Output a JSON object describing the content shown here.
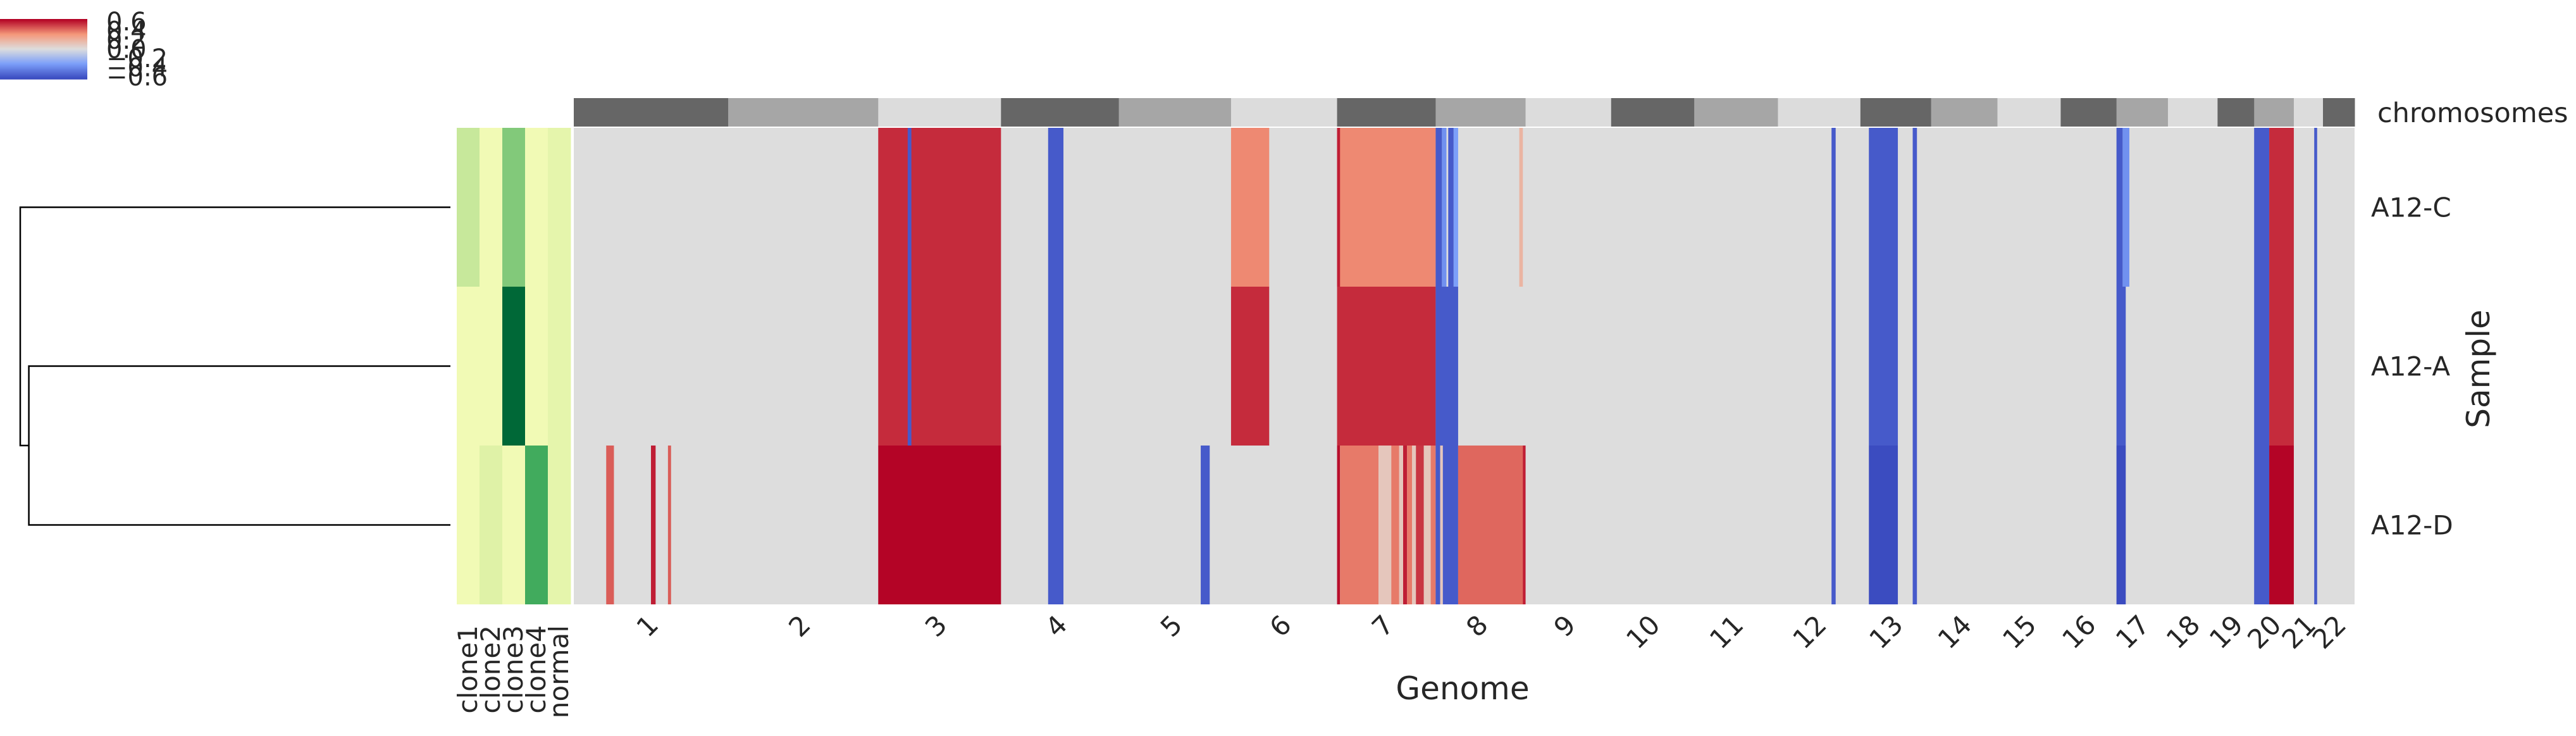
{
  "chart_data": {
    "type": "heatmap",
    "xlabel": "Genome",
    "ylabel": "Sample",
    "samples": [
      "A12-C",
      "A12-A",
      "A12-D"
    ],
    "chromosome_track_label": "chromosomes",
    "chromosomes": [
      "1",
      "2",
      "3",
      "4",
      "5",
      "6",
      "7",
      "8",
      "9",
      "10",
      "11",
      "12",
      "13",
      "14",
      "15",
      "16",
      "17",
      "18",
      "19",
      "20",
      "21",
      "22"
    ],
    "chromosome_relative_sizes": [
      249,
      242,
      198,
      190,
      181,
      171,
      159,
      145,
      138,
      134,
      135,
      133,
      114,
      107,
      102,
      90,
      83,
      80,
      59,
      64,
      47,
      51
    ],
    "chromosome_track_colors": [
      "#666666",
      "#a6a6a6",
      "#dcdcdc"
    ],
    "colorbar": {
      "ticks": [
        "0.6",
        "0.4",
        "0.2",
        "0.0",
        "−0.2",
        "−0.4",
        "−0.6"
      ],
      "range": [
        -0.6,
        0.6
      ],
      "colormap": "coolwarm"
    },
    "annotation_columns": [
      "clone1",
      "clone2",
      "clone3",
      "clone4",
      "normal"
    ],
    "annotation_values": [
      [
        0.35,
        0.05,
        0.6,
        0.05,
        0.15
      ],
      [
        0.05,
        0.05,
        1.0,
        0.05,
        0.15
      ],
      [
        0.05,
        0.2,
        0.05,
        0.75,
        0.15
      ]
    ],
    "annotation_colormap": "YlGn",
    "dendrogram": {
      "leaves": [
        "A12-C",
        "A12-A",
        "A12-D"
      ],
      "merges": [
        {
          "left": "A12-A",
          "right": "A12-D",
          "height": 0.98
        },
        {
          "left": "A12-C",
          "right": "merge-0",
          "height": 1.0
        }
      ]
    },
    "background_value": 0.0,
    "segments": {
      "A12-C": [
        {
          "chrom": "3",
          "start": 0.0,
          "end": 1.0,
          "value": 0.52
        },
        {
          "chrom": "3",
          "start": 0.24,
          "end": 0.27,
          "value": -0.55
        },
        {
          "chrom": "4",
          "start": 0.4,
          "end": 0.53,
          "value": -0.55
        },
        {
          "chrom": "6",
          "start": 0.0,
          "end": 0.36,
          "value": 0.33
        },
        {
          "chrom": "7",
          "start": 0.0,
          "end": 1.0,
          "value": 0.33
        },
        {
          "chrom": "7",
          "start": 0.0,
          "end": 0.03,
          "value": 0.55
        },
        {
          "chrom": "8",
          "start": 0.0,
          "end": 0.07,
          "value": -0.55
        },
        {
          "chrom": "8",
          "start": 0.07,
          "end": 0.12,
          "value": -0.35
        },
        {
          "chrom": "8",
          "start": 0.14,
          "end": 0.2,
          "value": -0.55
        },
        {
          "chrom": "8",
          "start": 0.2,
          "end": 0.25,
          "value": -0.3
        },
        {
          "chrom": "8",
          "start": 0.93,
          "end": 0.97,
          "value": 0.18
        },
        {
          "chrom": "12",
          "start": 0.65,
          "end": 0.7,
          "value": -0.55
        },
        {
          "chrom": "13",
          "start": 0.12,
          "end": 0.53,
          "value": -0.55
        },
        {
          "chrom": "13",
          "start": 0.74,
          "end": 0.8,
          "value": -0.55
        },
        {
          "chrom": "17",
          "start": 0.0,
          "end": 0.12,
          "value": -0.55
        },
        {
          "chrom": "17",
          "start": 0.12,
          "end": 0.25,
          "value": -0.35
        },
        {
          "chrom": "20",
          "start": 0.0,
          "end": 0.38,
          "value": -0.55
        },
        {
          "chrom": "20",
          "start": 0.38,
          "end": 1.0,
          "value": 0.52
        },
        {
          "chrom": "21",
          "start": 0.7,
          "end": 0.8,
          "value": -0.55
        }
      ],
      "A12-A": [
        {
          "chrom": "3",
          "start": 0.0,
          "end": 1.0,
          "value": 0.52
        },
        {
          "chrom": "3",
          "start": 0.24,
          "end": 0.27,
          "value": -0.55
        },
        {
          "chrom": "4",
          "start": 0.4,
          "end": 0.53,
          "value": -0.55
        },
        {
          "chrom": "6",
          "start": 0.0,
          "end": 0.36,
          "value": 0.52
        },
        {
          "chrom": "7",
          "start": 0.0,
          "end": 1.0,
          "value": 0.52
        },
        {
          "chrom": "8",
          "start": 0.0,
          "end": 0.25,
          "value": -0.55
        },
        {
          "chrom": "12",
          "start": 0.65,
          "end": 0.7,
          "value": -0.55
        },
        {
          "chrom": "13",
          "start": 0.12,
          "end": 0.53,
          "value": -0.55
        },
        {
          "chrom": "13",
          "start": 0.74,
          "end": 0.8,
          "value": -0.55
        },
        {
          "chrom": "17",
          "start": 0.0,
          "end": 0.18,
          "value": -0.55
        },
        {
          "chrom": "20",
          "start": 0.0,
          "end": 0.38,
          "value": -0.55
        },
        {
          "chrom": "20",
          "start": 0.38,
          "end": 1.0,
          "value": 0.52
        },
        {
          "chrom": "21",
          "start": 0.7,
          "end": 0.8,
          "value": -0.55
        }
      ],
      "A12-D": [
        {
          "chrom": "1",
          "start": 0.21,
          "end": 0.26,
          "value": 0.42
        },
        {
          "chrom": "1",
          "start": 0.5,
          "end": 0.53,
          "value": 0.55
        },
        {
          "chrom": "1",
          "start": 0.61,
          "end": 0.63,
          "value": 0.42
        },
        {
          "chrom": "3",
          "start": 0.0,
          "end": 1.0,
          "value": 0.6
        },
        {
          "chrom": "4",
          "start": 0.4,
          "end": 0.53,
          "value": -0.55
        },
        {
          "chrom": "5",
          "start": 0.73,
          "end": 0.81,
          "value": -0.55
        },
        {
          "chrom": "7",
          "start": 0.0,
          "end": 0.03,
          "value": 0.58
        },
        {
          "chrom": "7",
          "start": 0.03,
          "end": 0.42,
          "value": 0.36
        },
        {
          "chrom": "7",
          "start": 0.42,
          "end": 0.55,
          "value": 0.1
        },
        {
          "chrom": "7",
          "start": 0.55,
          "end": 0.63,
          "value": 0.36
        },
        {
          "chrom": "7",
          "start": 0.63,
          "end": 0.67,
          "value": 0.1
        },
        {
          "chrom": "7",
          "start": 0.67,
          "end": 0.71,
          "value": 0.55
        },
        {
          "chrom": "7",
          "start": 0.71,
          "end": 0.76,
          "value": 0.36
        },
        {
          "chrom": "7",
          "start": 0.76,
          "end": 0.8,
          "value": 0.1
        },
        {
          "chrom": "7",
          "start": 0.8,
          "end": 0.88,
          "value": 0.5
        },
        {
          "chrom": "7",
          "start": 0.88,
          "end": 0.95,
          "value": 0.1
        },
        {
          "chrom": "7",
          "start": 0.95,
          "end": 1.0,
          "value": 0.36
        },
        {
          "chrom": "8",
          "start": 0.0,
          "end": 0.05,
          "value": -0.55
        },
        {
          "chrom": "8",
          "start": 0.05,
          "end": 0.08,
          "value": 0.1
        },
        {
          "chrom": "8",
          "start": 0.08,
          "end": 0.25,
          "value": -0.55
        },
        {
          "chrom": "8",
          "start": 0.25,
          "end": 1.0,
          "value": 0.4
        },
        {
          "chrom": "8",
          "start": 0.97,
          "end": 1.0,
          "value": 0.55
        },
        {
          "chrom": "12",
          "start": 0.65,
          "end": 0.7,
          "value": -0.55
        },
        {
          "chrom": "13",
          "start": 0.12,
          "end": 0.53,
          "value": -0.6
        },
        {
          "chrom": "13",
          "start": 0.74,
          "end": 0.8,
          "value": -0.55
        },
        {
          "chrom": "17",
          "start": 0.0,
          "end": 0.18,
          "value": -0.6
        },
        {
          "chrom": "20",
          "start": 0.0,
          "end": 0.38,
          "value": -0.55
        },
        {
          "chrom": "20",
          "start": 0.38,
          "end": 1.0,
          "value": 0.6
        },
        {
          "chrom": "21",
          "start": 0.7,
          "end": 0.8,
          "value": -0.55
        }
      ]
    }
  }
}
